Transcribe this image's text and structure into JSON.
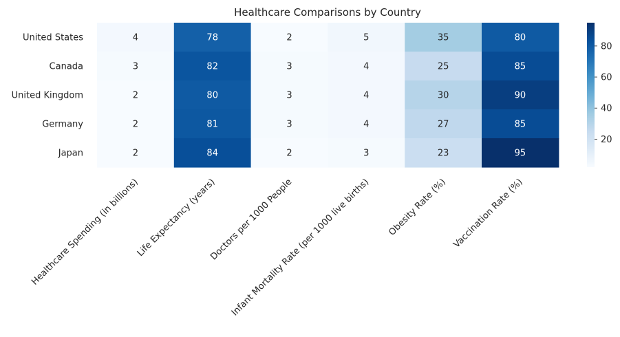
{
  "chart_data": {
    "type": "heatmap",
    "title": "Healthcare Comparisons by Country",
    "xlabel": "",
    "ylabel": "",
    "rows": [
      "United States",
      "Canada",
      "United Kingdom",
      "Germany",
      "Japan"
    ],
    "columns": [
      "Healthcare Spending (in billions)",
      "Life Expectancy (years)",
      "Doctors per 1000 People",
      "Infant Mortality Rate (per 1000 live births)",
      "Obesity Rate (%)",
      "Vaccination Rate (%)"
    ],
    "values": [
      [
        4,
        78,
        2,
        5,
        35,
        80
      ],
      [
        3,
        82,
        3,
        4,
        25,
        85
      ],
      [
        2,
        80,
        3,
        4,
        30,
        90
      ],
      [
        2,
        81,
        3,
        4,
        27,
        85
      ],
      [
        2,
        84,
        2,
        3,
        23,
        95
      ]
    ],
    "colormap": "Blues",
    "vmin": 2,
    "vmax": 95,
    "colorbar": {
      "ticks": [
        20,
        40,
        60,
        80
      ],
      "tick_labels": [
        "20",
        "40",
        "60",
        "80"
      ]
    },
    "annotations": true
  }
}
